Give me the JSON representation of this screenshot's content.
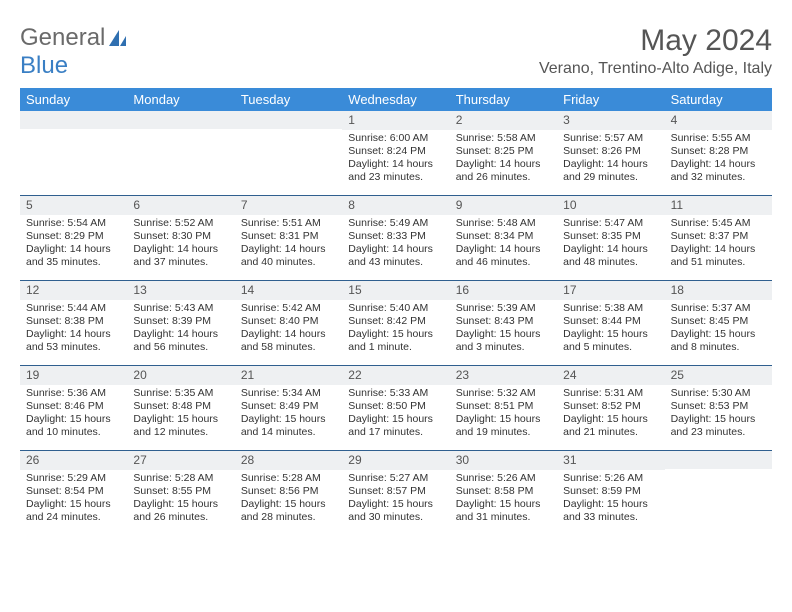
{
  "brand": {
    "text1": "General",
    "text2": "Blue"
  },
  "title": "May 2024",
  "location": "Verano, Trentino-Alto Adige, Italy",
  "header_bg": "#3a8bd8",
  "daynum_bg": "#eef0f2",
  "sep_color": "#2f5f8f",
  "daynames": [
    "Sunday",
    "Monday",
    "Tuesday",
    "Wednesday",
    "Thursday",
    "Friday",
    "Saturday"
  ],
  "weeks": [
    [
      {
        "n": "",
        "sr": "",
        "ss": "",
        "dl": ""
      },
      {
        "n": "",
        "sr": "",
        "ss": "",
        "dl": ""
      },
      {
        "n": "",
        "sr": "",
        "ss": "",
        "dl": ""
      },
      {
        "n": "1",
        "sr": "Sunrise: 6:00 AM",
        "ss": "Sunset: 8:24 PM",
        "dl": "Daylight: 14 hours and 23 minutes."
      },
      {
        "n": "2",
        "sr": "Sunrise: 5:58 AM",
        "ss": "Sunset: 8:25 PM",
        "dl": "Daylight: 14 hours and 26 minutes."
      },
      {
        "n": "3",
        "sr": "Sunrise: 5:57 AM",
        "ss": "Sunset: 8:26 PM",
        "dl": "Daylight: 14 hours and 29 minutes."
      },
      {
        "n": "4",
        "sr": "Sunrise: 5:55 AM",
        "ss": "Sunset: 8:28 PM",
        "dl": "Daylight: 14 hours and 32 minutes."
      }
    ],
    [
      {
        "n": "5",
        "sr": "Sunrise: 5:54 AM",
        "ss": "Sunset: 8:29 PM",
        "dl": "Daylight: 14 hours and 35 minutes."
      },
      {
        "n": "6",
        "sr": "Sunrise: 5:52 AM",
        "ss": "Sunset: 8:30 PM",
        "dl": "Daylight: 14 hours and 37 minutes."
      },
      {
        "n": "7",
        "sr": "Sunrise: 5:51 AM",
        "ss": "Sunset: 8:31 PM",
        "dl": "Daylight: 14 hours and 40 minutes."
      },
      {
        "n": "8",
        "sr": "Sunrise: 5:49 AM",
        "ss": "Sunset: 8:33 PM",
        "dl": "Daylight: 14 hours and 43 minutes."
      },
      {
        "n": "9",
        "sr": "Sunrise: 5:48 AM",
        "ss": "Sunset: 8:34 PM",
        "dl": "Daylight: 14 hours and 46 minutes."
      },
      {
        "n": "10",
        "sr": "Sunrise: 5:47 AM",
        "ss": "Sunset: 8:35 PM",
        "dl": "Daylight: 14 hours and 48 minutes."
      },
      {
        "n": "11",
        "sr": "Sunrise: 5:45 AM",
        "ss": "Sunset: 8:37 PM",
        "dl": "Daylight: 14 hours and 51 minutes."
      }
    ],
    [
      {
        "n": "12",
        "sr": "Sunrise: 5:44 AM",
        "ss": "Sunset: 8:38 PM",
        "dl": "Daylight: 14 hours and 53 minutes."
      },
      {
        "n": "13",
        "sr": "Sunrise: 5:43 AM",
        "ss": "Sunset: 8:39 PM",
        "dl": "Daylight: 14 hours and 56 minutes."
      },
      {
        "n": "14",
        "sr": "Sunrise: 5:42 AM",
        "ss": "Sunset: 8:40 PM",
        "dl": "Daylight: 14 hours and 58 minutes."
      },
      {
        "n": "15",
        "sr": "Sunrise: 5:40 AM",
        "ss": "Sunset: 8:42 PM",
        "dl": "Daylight: 15 hours and 1 minute."
      },
      {
        "n": "16",
        "sr": "Sunrise: 5:39 AM",
        "ss": "Sunset: 8:43 PM",
        "dl": "Daylight: 15 hours and 3 minutes."
      },
      {
        "n": "17",
        "sr": "Sunrise: 5:38 AM",
        "ss": "Sunset: 8:44 PM",
        "dl": "Daylight: 15 hours and 5 minutes."
      },
      {
        "n": "18",
        "sr": "Sunrise: 5:37 AM",
        "ss": "Sunset: 8:45 PM",
        "dl": "Daylight: 15 hours and 8 minutes."
      }
    ],
    [
      {
        "n": "19",
        "sr": "Sunrise: 5:36 AM",
        "ss": "Sunset: 8:46 PM",
        "dl": "Daylight: 15 hours and 10 minutes."
      },
      {
        "n": "20",
        "sr": "Sunrise: 5:35 AM",
        "ss": "Sunset: 8:48 PM",
        "dl": "Daylight: 15 hours and 12 minutes."
      },
      {
        "n": "21",
        "sr": "Sunrise: 5:34 AM",
        "ss": "Sunset: 8:49 PM",
        "dl": "Daylight: 15 hours and 14 minutes."
      },
      {
        "n": "22",
        "sr": "Sunrise: 5:33 AM",
        "ss": "Sunset: 8:50 PM",
        "dl": "Daylight: 15 hours and 17 minutes."
      },
      {
        "n": "23",
        "sr": "Sunrise: 5:32 AM",
        "ss": "Sunset: 8:51 PM",
        "dl": "Daylight: 15 hours and 19 minutes."
      },
      {
        "n": "24",
        "sr": "Sunrise: 5:31 AM",
        "ss": "Sunset: 8:52 PM",
        "dl": "Daylight: 15 hours and 21 minutes."
      },
      {
        "n": "25",
        "sr": "Sunrise: 5:30 AM",
        "ss": "Sunset: 8:53 PM",
        "dl": "Daylight: 15 hours and 23 minutes."
      }
    ],
    [
      {
        "n": "26",
        "sr": "Sunrise: 5:29 AM",
        "ss": "Sunset: 8:54 PM",
        "dl": "Daylight: 15 hours and 24 minutes."
      },
      {
        "n": "27",
        "sr": "Sunrise: 5:28 AM",
        "ss": "Sunset: 8:55 PM",
        "dl": "Daylight: 15 hours and 26 minutes."
      },
      {
        "n": "28",
        "sr": "Sunrise: 5:28 AM",
        "ss": "Sunset: 8:56 PM",
        "dl": "Daylight: 15 hours and 28 minutes."
      },
      {
        "n": "29",
        "sr": "Sunrise: 5:27 AM",
        "ss": "Sunset: 8:57 PM",
        "dl": "Daylight: 15 hours and 30 minutes."
      },
      {
        "n": "30",
        "sr": "Sunrise: 5:26 AM",
        "ss": "Sunset: 8:58 PM",
        "dl": "Daylight: 15 hours and 31 minutes."
      },
      {
        "n": "31",
        "sr": "Sunrise: 5:26 AM",
        "ss": "Sunset: 8:59 PM",
        "dl": "Daylight: 15 hours and 33 minutes."
      },
      {
        "n": "",
        "sr": "",
        "ss": "",
        "dl": ""
      }
    ]
  ]
}
